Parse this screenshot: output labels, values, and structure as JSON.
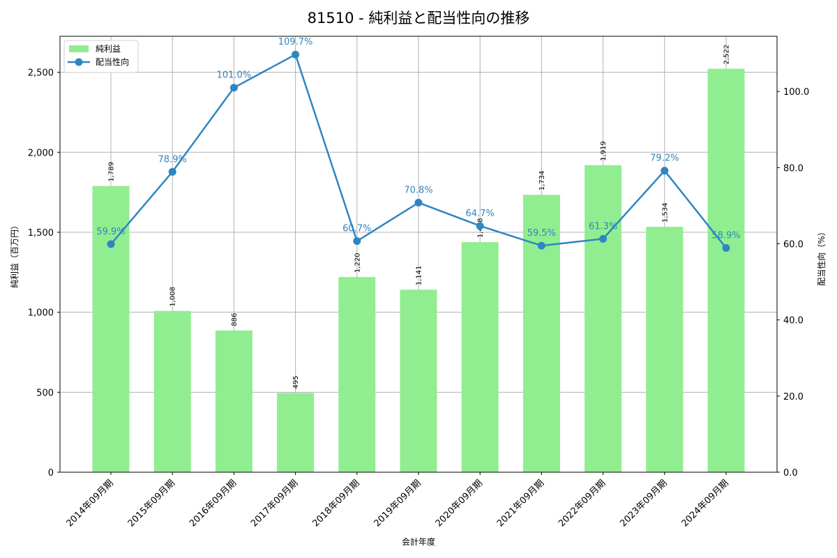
{
  "title": "81510 - 純利益と配当性向の推移",
  "colors": {
    "bar": "#90ee90",
    "line": "#2e86c1",
    "grid": "#b0b0b0"
  },
  "chart_data": {
    "type": "bar+line",
    "title": "81510 - 純利益と配当性向の推移",
    "xlabel": "会計年度",
    "ylabel": "純利益（百万円）",
    "y2label": "配当性向（%）",
    "ylim": [
      0,
      2725
    ],
    "y2lim": [
      0,
      114.5
    ],
    "yticks": [
      0,
      500,
      1000,
      1500,
      2000,
      2500
    ],
    "ytick_labels": [
      "0",
      "500",
      "1,000",
      "1,500",
      "2,000",
      "2,500"
    ],
    "y2ticks": [
      0,
      20,
      40,
      60,
      80,
      100
    ],
    "y2tick_labels": [
      "0.0",
      "20.0",
      "40.0",
      "60.0",
      "80.0",
      "100.0"
    ],
    "grid": true,
    "legend_position": "upper left",
    "categories": [
      "2014年09月期",
      "2015年09月期",
      "2016年09月期",
      "2017年09月期",
      "2018年09月期",
      "2019年09月期",
      "2020年09月期",
      "2021年09月期",
      "2022年09月期",
      "2023年09月期",
      "2024年09月期"
    ],
    "series": [
      {
        "name": "純利益",
        "type": "bar",
        "axis": "left",
        "values": [
          1789,
          1008,
          886,
          495,
          1220,
          1141,
          1438,
          1734,
          1919,
          1534,
          2522
        ],
        "labels": [
          "1,789",
          "1,008",
          "886",
          "495",
          "1,220",
          "1,141",
          "1,438",
          "1,734",
          "1,919",
          "1,534",
          "2,522"
        ]
      },
      {
        "name": "配当性向",
        "type": "line",
        "axis": "right",
        "values": [
          59.9,
          78.9,
          101.0,
          109.7,
          60.7,
          70.8,
          64.7,
          59.5,
          61.3,
          79.2,
          58.9
        ],
        "labels": [
          "59.9%",
          "78.9%",
          "101.0%",
          "109.7%",
          "60.7%",
          "70.8%",
          "64.7%",
          "59.5%",
          "61.3%",
          "79.2%",
          "58.9%"
        ]
      }
    ]
  }
}
